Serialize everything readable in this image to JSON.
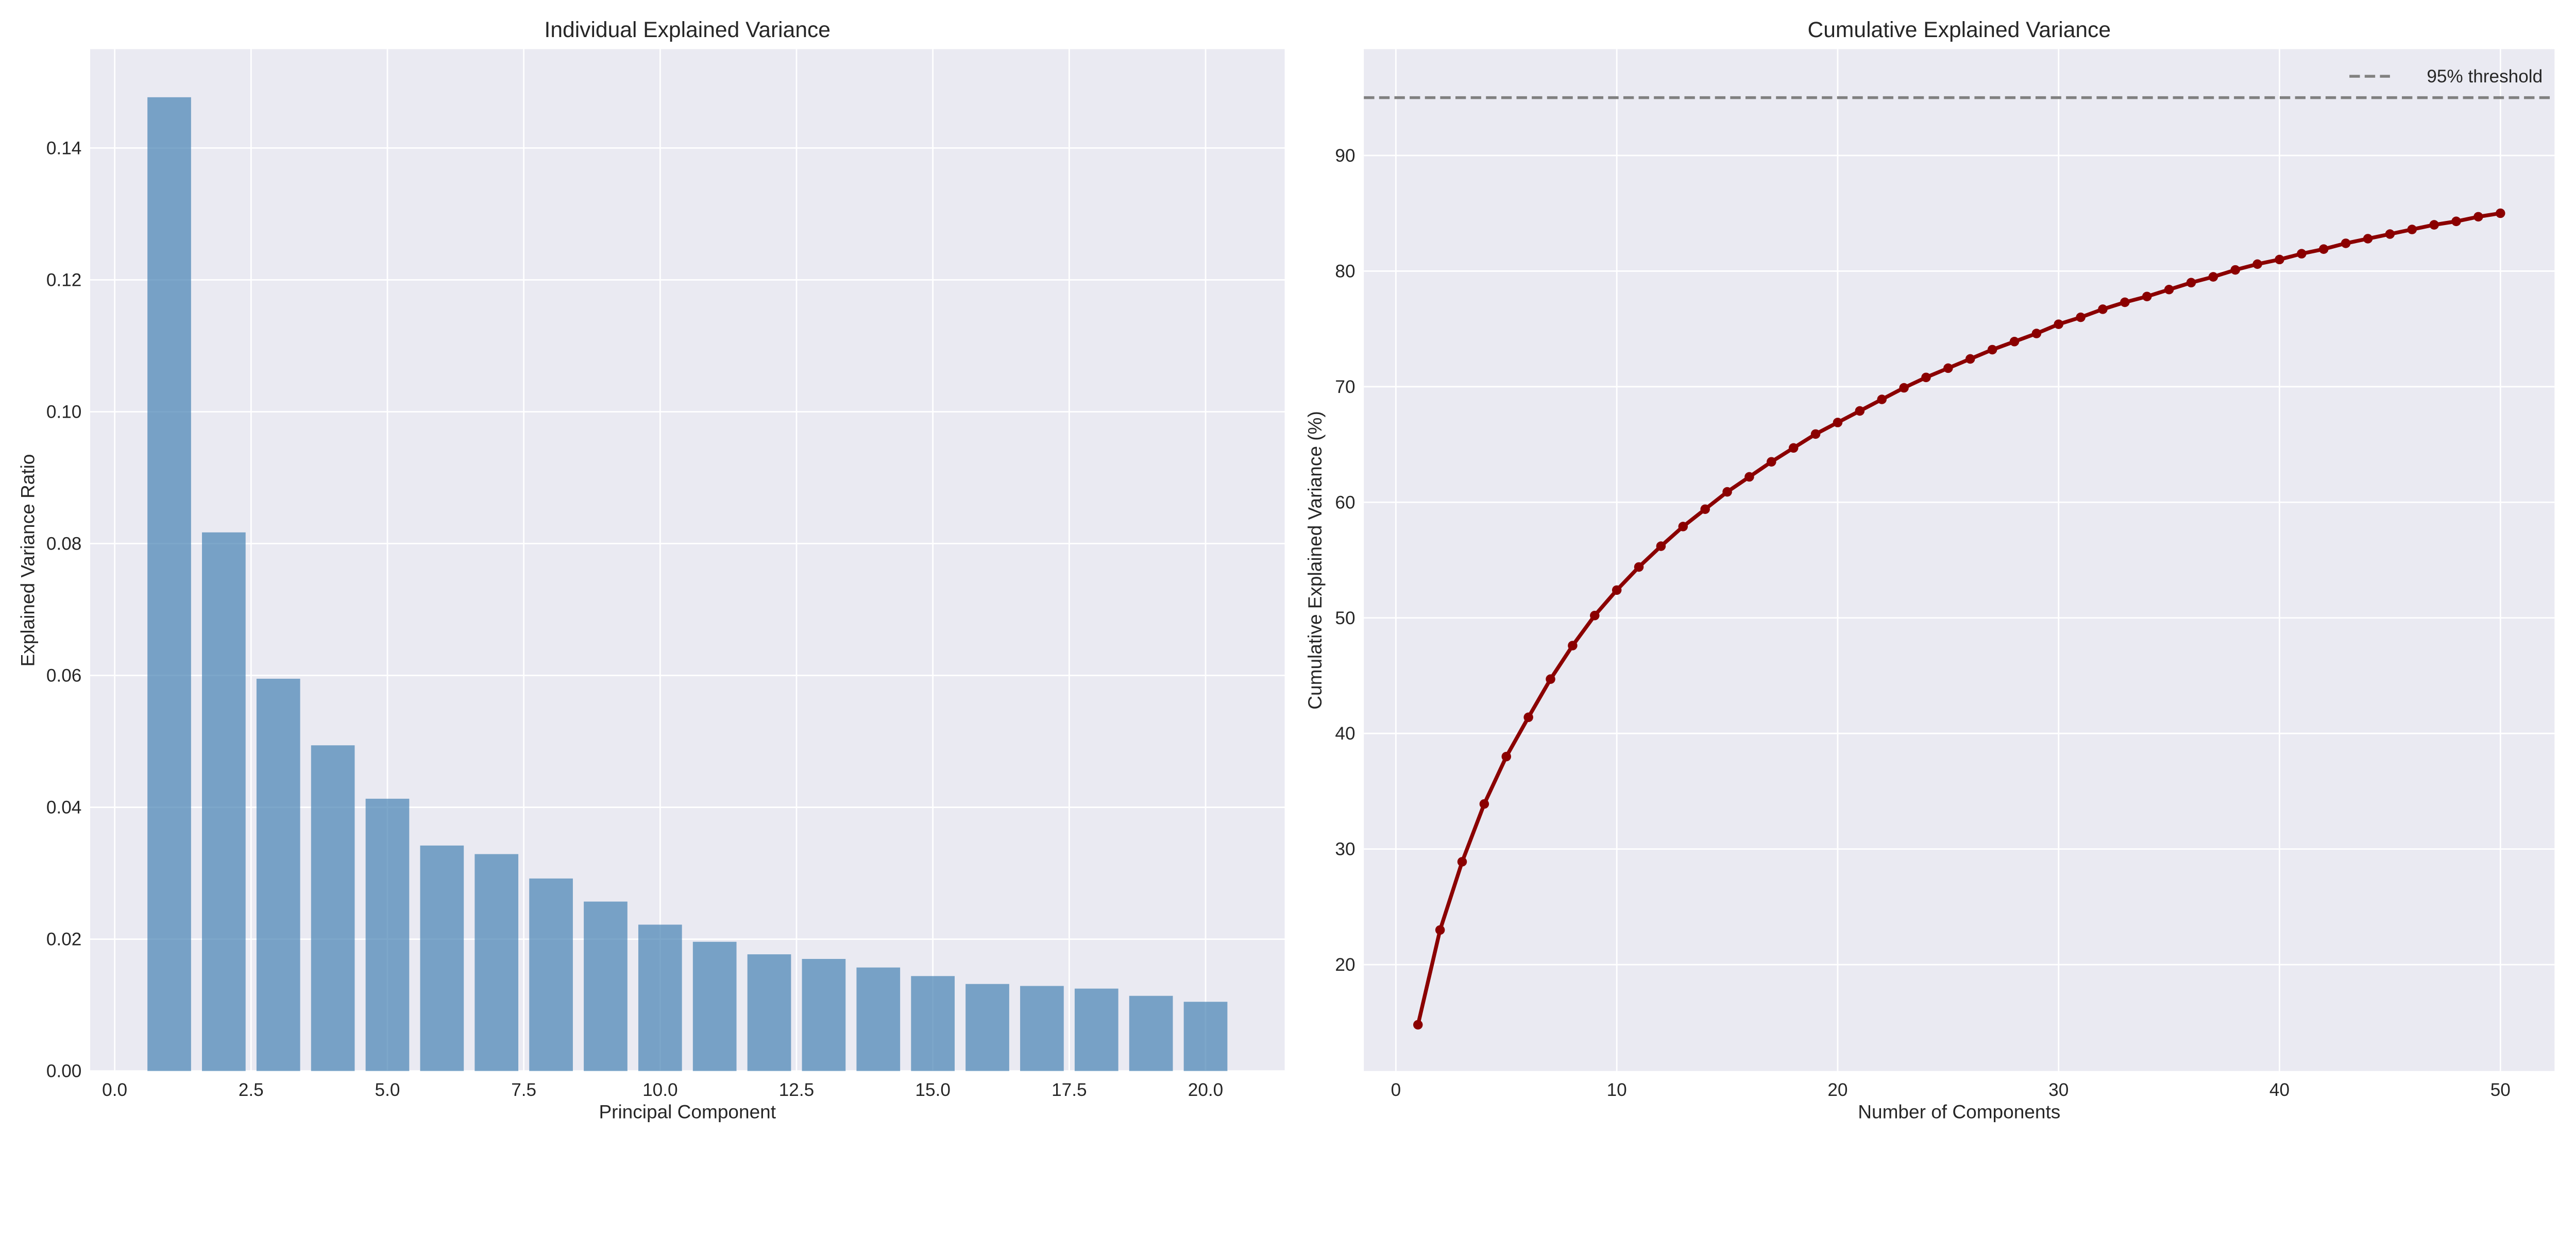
{
  "chart_data": [
    {
      "type": "bar",
      "title": "Individual Explained Variance",
      "xlabel": "Principal Component",
      "ylabel": "Explained Variance Ratio",
      "xlim": [
        -0.45,
        21.45
      ],
      "ylim": [
        0,
        0.155
      ],
      "xticks": [
        "0.0",
        "2.5",
        "5.0",
        "7.5",
        "10.0",
        "12.5",
        "15.0",
        "17.5",
        "20.0"
      ],
      "xtick_values": [
        0,
        2.5,
        5,
        7.5,
        10,
        12.5,
        15,
        17.5,
        20
      ],
      "yticks": [
        "0.00",
        "0.02",
        "0.04",
        "0.06",
        "0.08",
        "0.10",
        "0.12",
        "0.14"
      ],
      "ytick_values": [
        0,
        0.02,
        0.04,
        0.06,
        0.08,
        0.1,
        0.12,
        0.14
      ],
      "grid": true,
      "x": [
        1,
        2,
        3,
        4,
        5,
        6,
        7,
        8,
        9,
        10,
        11,
        12,
        13,
        14,
        15,
        16,
        17,
        18,
        19,
        20
      ],
      "values": [
        0.1477,
        0.0817,
        0.0595,
        0.0494,
        0.0413,
        0.0342,
        0.0329,
        0.0292,
        0.0257,
        0.0222,
        0.0196,
        0.0177,
        0.017,
        0.0157,
        0.0144,
        0.0132,
        0.0129,
        0.0125,
        0.0114,
        0.0105
      ],
      "color": "#4682b4"
    },
    {
      "type": "line",
      "title": "Cumulative Explained Variance",
      "xlabel": "Number of Components",
      "ylabel": "Cumulative Explained Variance (%)",
      "xlim": [
        -1.45,
        52.45
      ],
      "ylim": [
        10.8,
        99.2
      ],
      "xticks": [
        "0",
        "10",
        "20",
        "30",
        "40",
        "50"
      ],
      "xtick_values": [
        0,
        10,
        20,
        30,
        40,
        50
      ],
      "yticks": [
        "20",
        "30",
        "40",
        "50",
        "60",
        "70",
        "80",
        "90"
      ],
      "ytick_values": [
        20,
        30,
        40,
        50,
        60,
        70,
        80,
        90
      ],
      "grid": true,
      "legend_placement": "top-right",
      "x": [
        1,
        2,
        3,
        4,
        5,
        6,
        7,
        8,
        9,
        10,
        11,
        12,
        13,
        14,
        15,
        16,
        17,
        18,
        19,
        20,
        21,
        22,
        23,
        24,
        25,
        26,
        27,
        28,
        29,
        30,
        31,
        32,
        33,
        34,
        35,
        36,
        37,
        38,
        39,
        40,
        41,
        42,
        43,
        44,
        45,
        46,
        47,
        48,
        49,
        50
      ],
      "values": [
        14.8,
        23.0,
        28.9,
        33.9,
        38.0,
        41.4,
        44.7,
        47.6,
        50.2,
        52.4,
        54.4,
        56.2,
        57.9,
        59.4,
        60.9,
        62.2,
        63.5,
        64.7,
        65.9,
        66.9,
        67.9,
        68.9,
        69.9,
        70.8,
        71.6,
        72.4,
        73.2,
        73.9,
        74.6,
        75.4,
        76.0,
        76.7,
        77.3,
        77.8,
        78.4,
        79.0,
        79.5,
        80.1,
        80.6,
        81.0,
        81.5,
        81.9,
        82.4,
        82.8,
        83.2,
        83.6,
        84.0,
        84.3,
        84.7,
        85.0
      ],
      "color": "#8b0000",
      "threshold": {
        "value": 95,
        "label": "95% threshold",
        "color": "#808080",
        "style": "dashed"
      }
    }
  ]
}
